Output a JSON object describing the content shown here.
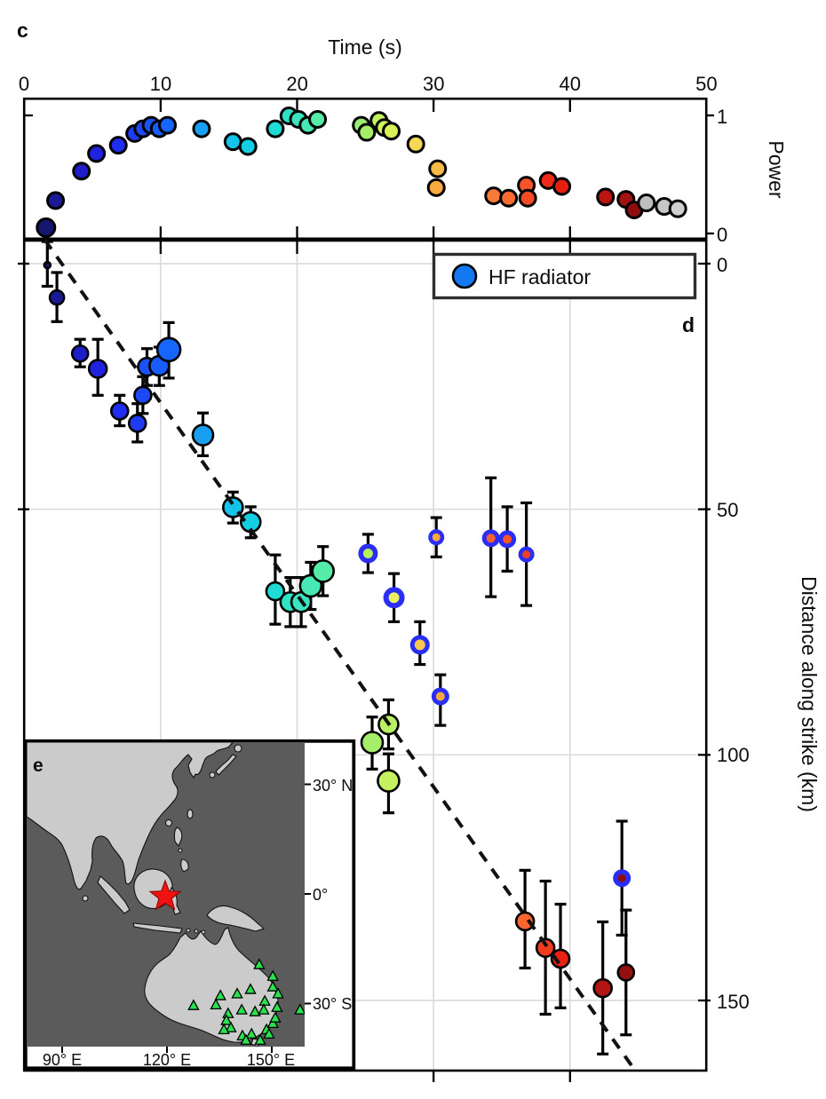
{
  "figure": {
    "panel_c_label": "c",
    "panel_d_label": "d",
    "panel_e_label": "e"
  },
  "colors": {
    "hf_ring_blue": "#2a2ef5",
    "legend_marker_blue": "#1478f0",
    "grid": "#dcdcdc",
    "errbar": "#000000",
    "dashed_line": "#111111",
    "ocean": "#5b5b5b",
    "land": "#cbcbcb",
    "epicenter_star_red": "#ee1212",
    "station_green": "#2ae24e"
  },
  "chart_data": [
    {
      "type": "scatter",
      "id": "power_vs_time",
      "xlabel": "Time (s)",
      "ylabel": "Power",
      "xlim": [
        0,
        50
      ],
      "ylim": [
        0,
        1
      ],
      "xticks": [
        0,
        10,
        20,
        30,
        40,
        50
      ],
      "xtick_labels": [
        "0",
        "10",
        "20",
        "30",
        "40",
        "50"
      ],
      "ytick_labels": [
        "1",
        "0"
      ],
      "grid": false,
      "points": [
        [
          1.6,
          0.05,
          "#16166e"
        ],
        [
          2.3,
          0.28,
          "#1a1a96"
        ],
        [
          4.2,
          0.53,
          "#1e1ec8"
        ],
        [
          5.3,
          0.68,
          "#2121e0"
        ],
        [
          6.9,
          0.75,
          "#1f2df0"
        ],
        [
          8.1,
          0.85,
          "#1e3cf2"
        ],
        [
          8.7,
          0.89,
          "#1c48f5"
        ],
        [
          9.3,
          0.92,
          "#1a52f7"
        ],
        [
          9.9,
          0.89,
          "#185cf9"
        ],
        [
          10.5,
          0.92,
          "#1766fb"
        ],
        [
          13.0,
          0.89,
          "#189ff2"
        ],
        [
          15.3,
          0.78,
          "#14c3ea"
        ],
        [
          16.4,
          0.74,
          "#12cfe4"
        ],
        [
          18.4,
          0.89,
          "#1edcd4"
        ],
        [
          19.4,
          1.0,
          "#2fe2c6"
        ],
        [
          20.1,
          0.97,
          "#3be4be"
        ],
        [
          20.8,
          0.92,
          "#48e8b4"
        ],
        [
          21.5,
          0.97,
          "#55ecaa"
        ],
        [
          24.7,
          0.92,
          "#9aee72"
        ],
        [
          25.1,
          0.86,
          "#a5ef68"
        ],
        [
          26.0,
          0.96,
          "#c3f25e"
        ],
        [
          26.4,
          0.9,
          "#cdf25a"
        ],
        [
          26.9,
          0.87,
          "#d8f156"
        ],
        [
          28.7,
          0.76,
          "#f3d755"
        ],
        [
          30.3,
          0.55,
          "#f8b947"
        ],
        [
          30.2,
          0.39,
          "#f8a93f"
        ],
        [
          34.4,
          0.32,
          "#f87a36"
        ],
        [
          35.5,
          0.3,
          "#f86b31"
        ],
        [
          36.8,
          0.41,
          "#f6552b"
        ],
        [
          36.9,
          0.3,
          "#f44b26"
        ],
        [
          38.4,
          0.45,
          "#f02a18"
        ],
        [
          39.4,
          0.4,
          "#e51f10"
        ],
        [
          42.6,
          0.31,
          "#bc1511"
        ],
        [
          44.1,
          0.29,
          "#a31111"
        ],
        [
          44.7,
          0.2,
          "#8c0e0e"
        ],
        [
          45.6,
          0.26,
          "#bfbfbf"
        ],
        [
          46.9,
          0.23,
          "#c6c6c6"
        ],
        [
          47.9,
          0.21,
          "#cfcfcf"
        ]
      ]
    },
    {
      "type": "scatter",
      "id": "distance_along_strike_vs_time",
      "ylabel": "Distance along strike (km)",
      "yticks": [
        0,
        50,
        100,
        150
      ],
      "ytick_labels": [
        "0",
        "50",
        "100",
        "150"
      ],
      "xticks_minor": [
        10,
        20,
        30,
        40
      ],
      "grid": true,
      "legend": {
        "label": "HF radiator",
        "position": "upper right"
      },
      "points": [
        [
          1.7,
          0.3,
          -4.5,
          4.6,
          3.5,
          "#16166e"
        ],
        [
          2.4,
          6.9,
          1.8,
          11.8,
          8,
          "#1a1a96"
        ],
        [
          4.1,
          18.3,
          15.4,
          21.0,
          9,
          "#1e1ec8"
        ],
        [
          5.4,
          21.4,
          15.4,
          26.8,
          10,
          "#2121e0"
        ],
        [
          7.0,
          30.0,
          26.8,
          33.0,
          9.5,
          "#1f2df0"
        ],
        [
          8.3,
          32.5,
          28.5,
          36.3,
          9.5,
          "#1e3cf2"
        ],
        [
          8.7,
          26.8,
          23.0,
          30.5,
          9.5,
          "#1c48f5"
        ],
        [
          9.0,
          21.0,
          17.3,
          24.8,
          10,
          "#1a52f7"
        ],
        [
          9.9,
          20.8,
          17.0,
          24.8,
          11,
          "#185cf9"
        ],
        [
          10.6,
          17.5,
          12.0,
          23.3,
          13,
          "#1766fb"
        ],
        [
          13.1,
          34.9,
          30.4,
          39.1,
          11.5,
          "#189ff2"
        ],
        [
          15.3,
          49.6,
          46.5,
          52.8,
          11,
          "#14c3ea"
        ],
        [
          16.6,
          52.6,
          49.5,
          55.8,
          11,
          "#12cfe4"
        ],
        [
          18.4,
          66.7,
          59.3,
          73.4,
          10,
          "#1edcd4"
        ],
        [
          19.5,
          68.9,
          63.9,
          73.9,
          11,
          "#2fe2c6"
        ],
        [
          20.3,
          68.9,
          63.9,
          73.9,
          11,
          "#3be4be"
        ],
        [
          21.0,
          65.6,
          60.8,
          70.4,
          12,
          "#48e8b4"
        ],
        [
          21.9,
          62.6,
          57.6,
          67.6,
          12,
          "#55ecaa"
        ],
        [
          25.5,
          97.5,
          92.3,
          102.9,
          12,
          "#a5ef68"
        ],
        [
          26.7,
          93.8,
          88.8,
          98.8,
          11,
          "#b7f161"
        ],
        [
          26.7,
          105.3,
          99.8,
          111.8,
          12,
          "#c3f25e"
        ],
        [
          36.7,
          133.9,
          123.5,
          143.4,
          10,
          "#f8652f"
        ],
        [
          38.2,
          139.3,
          125.7,
          152.8,
          10,
          "#f23c20"
        ],
        [
          39.3,
          141.5,
          130.4,
          151.5,
          10,
          "#e82112"
        ],
        [
          42.4,
          147.5,
          134.0,
          160.9,
          10,
          "#b41413"
        ],
        [
          44.1,
          144.3,
          131.6,
          157.0,
          9,
          "#941010"
        ]
      ],
      "hf_points": [
        [
          25.2,
          59.0,
          55.1,
          62.9,
          11,
          5.5,
          "#b4f05c"
        ],
        [
          27.1,
          68.0,
          63.1,
          72.9,
          12,
          6,
          "#e8f060"
        ],
        [
          29.0,
          77.6,
          72.9,
          81.6,
          11,
          6,
          "#f8c84e"
        ],
        [
          30.2,
          55.7,
          51.7,
          59.7,
          9,
          4.5,
          "#f8a83e"
        ],
        [
          30.5,
          88.1,
          83.7,
          94.0,
          10,
          5,
          "#f8a83e"
        ],
        [
          34.2,
          55.9,
          43.6,
          67.8,
          10,
          5,
          "#f8602d"
        ],
        [
          35.4,
          56.1,
          49.5,
          62.6,
          10,
          5,
          "#f85628"
        ],
        [
          36.8,
          59.2,
          48.7,
          69.6,
          9,
          4.5,
          "#ef4020"
        ],
        [
          43.8,
          125.1,
          113.5,
          136.7,
          10,
          4.5,
          "#8c0e0e"
        ]
      ],
      "dashed_line": {
        "t1": 1.5,
        "d1": -4.9,
        "t2": 44.6,
        "d2": 163.6
      }
    },
    {
      "type": "map",
      "id": "station_map",
      "lon_tick_labels": [
        "90° E",
        "120° E",
        "150° E"
      ],
      "lat_tick_labels": [
        "30° N",
        "0°",
        "30° S"
      ],
      "lon_ticks": [
        90,
        120,
        150
      ],
      "lat_ticks": [
        30,
        0,
        -30
      ],
      "epicenter": {
        "lon": 119.5,
        "lat": -0.7
      },
      "stations": [
        [
          146.4,
          -19.4
        ],
        [
          150.3,
          -22.6
        ],
        [
          150.3,
          -25.5
        ],
        [
          135.3,
          -27.9
        ],
        [
          140.1,
          -27.4
        ],
        [
          143.9,
          -26.2
        ],
        [
          148.0,
          -29.4
        ],
        [
          151.8,
          -27.4
        ],
        [
          127.6,
          -30.6
        ],
        [
          134.0,
          -30.4
        ],
        [
          137.5,
          -32.8
        ],
        [
          141.4,
          -31.8
        ],
        [
          145.2,
          -32.3
        ],
        [
          147.7,
          -31.8
        ],
        [
          151.5,
          -31.1
        ],
        [
          158.1,
          -31.8
        ],
        [
          137.0,
          -34.7
        ],
        [
          138.3,
          -36.7
        ],
        [
          136.3,
          -37.2
        ],
        [
          141.6,
          -38.9
        ],
        [
          144.2,
          -38.4
        ],
        [
          148.5,
          -37.2
        ],
        [
          150.3,
          -35.5
        ],
        [
          151.0,
          -34.0
        ],
        [
          142.6,
          -40.1
        ],
        [
          146.7,
          -40.1
        ],
        [
          149.2,
          -38.4
        ]
      ]
    }
  ]
}
